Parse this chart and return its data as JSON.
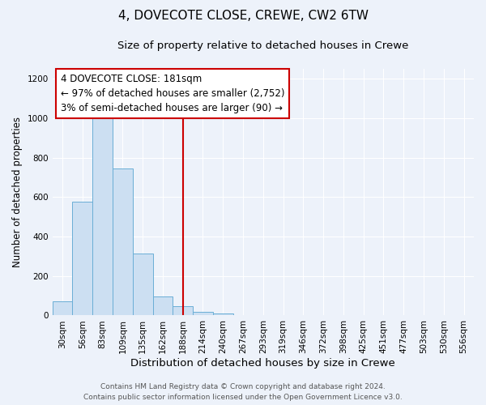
{
  "title": "4, DOVECOTE CLOSE, CREWE, CW2 6TW",
  "subtitle": "Size of property relative to detached houses in Crewe",
  "xlabel": "Distribution of detached houses by size in Crewe",
  "ylabel": "Number of detached properties",
  "bar_labels": [
    "30sqm",
    "56sqm",
    "83sqm",
    "109sqm",
    "135sqm",
    "162sqm",
    "188sqm",
    "214sqm",
    "240sqm",
    "267sqm",
    "293sqm",
    "319sqm",
    "346sqm",
    "372sqm",
    "398sqm",
    "425sqm",
    "451sqm",
    "477sqm",
    "503sqm",
    "530sqm",
    "556sqm"
  ],
  "bar_values": [
    70,
    575,
    1000,
    745,
    315,
    95,
    45,
    20,
    10,
    0,
    0,
    0,
    0,
    0,
    0,
    0,
    0,
    0,
    0,
    0,
    0
  ],
  "bar_color": "#ccdff2",
  "bar_edge_color": "#6aaed6",
  "vline_color": "#cc0000",
  "box_edge_color": "#cc0000",
  "annotation_line1": "4 DOVECOTE CLOSE: 181sqm",
  "annotation_line2": "← 97% of detached houses are smaller (2,752)",
  "annotation_line3": "3% of semi-detached houses are larger (90) →",
  "footer_line1": "Contains HM Land Registry data © Crown copyright and database right 2024.",
  "footer_line2": "Contains public sector information licensed under the Open Government Licence v3.0.",
  "bg_color": "#edf2fa",
  "plot_bg_color": "#edf2fa",
  "grid_color": "#ffffff",
  "ylim": [
    0,
    1250
  ],
  "title_fontsize": 11,
  "subtitle_fontsize": 9.5,
  "xlabel_fontsize": 9.5,
  "ylabel_fontsize": 8.5,
  "tick_fontsize": 7.5,
  "footer_fontsize": 6.5,
  "annotation_fontsize": 8.5,
  "vline_index": 6
}
